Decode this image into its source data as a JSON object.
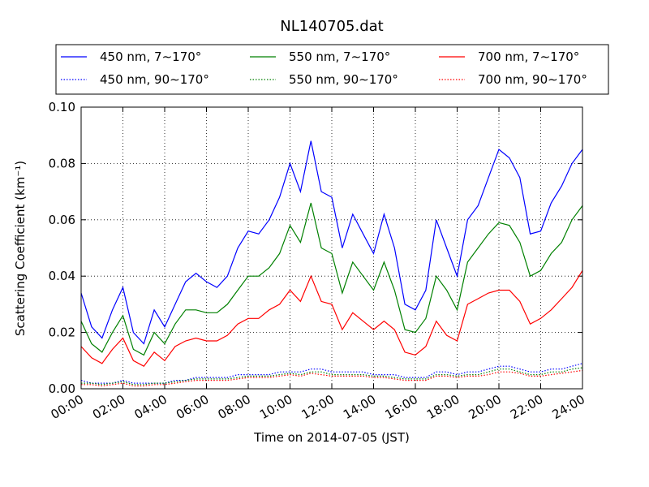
{
  "chart_data": {
    "type": "line",
    "title": "NL140705.dat",
    "xlabel": "Time on 2014-07-05 (JST)",
    "ylabel": "Scattering Coefficient (km⁻¹)",
    "x": [
      0,
      0.5,
      1,
      1.5,
      2,
      2.5,
      3,
      3.5,
      4,
      4.5,
      5,
      5.5,
      6,
      6.5,
      7,
      7.5,
      8,
      8.5,
      9,
      9.5,
      10,
      10.5,
      11,
      11.5,
      12,
      12.5,
      13,
      13.5,
      14,
      14.5,
      15,
      15.5,
      16,
      16.5,
      17,
      17.5,
      18,
      18.5,
      19,
      19.5,
      20,
      20.5,
      21,
      21.5,
      22,
      22.5,
      23,
      23.5,
      24
    ],
    "series": [
      {
        "name": "450 nm, 7∼170°",
        "color": "#0000ff",
        "style": "solid",
        "values": [
          0.034,
          0.022,
          0.018,
          0.028,
          0.036,
          0.02,
          0.016,
          0.028,
          0.022,
          0.03,
          0.038,
          0.041,
          0.038,
          0.036,
          0.04,
          0.05,
          0.056,
          0.055,
          0.06,
          0.068,
          0.08,
          0.07,
          0.088,
          0.07,
          0.068,
          0.05,
          0.062,
          0.055,
          0.048,
          0.062,
          0.05,
          0.03,
          0.028,
          0.035,
          0.06,
          0.05,
          0.04,
          0.06,
          0.065,
          0.075,
          0.085,
          0.082,
          0.075,
          0.055,
          0.056,
          0.066,
          0.072,
          0.08,
          0.085
        ]
      },
      {
        "name": "550 nm, 7∼170°",
        "color": "#008000",
        "style": "solid",
        "values": [
          0.024,
          0.016,
          0.013,
          0.02,
          0.026,
          0.014,
          0.012,
          0.02,
          0.016,
          0.023,
          0.028,
          0.028,
          0.027,
          0.027,
          0.03,
          0.035,
          0.04,
          0.04,
          0.043,
          0.048,
          0.058,
          0.052,
          0.066,
          0.05,
          0.048,
          0.034,
          0.045,
          0.04,
          0.035,
          0.045,
          0.035,
          0.021,
          0.02,
          0.025,
          0.04,
          0.035,
          0.028,
          0.045,
          0.05,
          0.055,
          0.059,
          0.058,
          0.052,
          0.04,
          0.042,
          0.048,
          0.052,
          0.06,
          0.065
        ]
      },
      {
        "name": "700 nm, 7∼170°",
        "color": "#ff0000",
        "style": "solid",
        "values": [
          0.015,
          0.011,
          0.009,
          0.014,
          0.018,
          0.01,
          0.008,
          0.013,
          0.01,
          0.015,
          0.017,
          0.018,
          0.017,
          0.017,
          0.019,
          0.023,
          0.025,
          0.025,
          0.028,
          0.03,
          0.035,
          0.031,
          0.04,
          0.031,
          0.03,
          0.021,
          0.027,
          0.024,
          0.021,
          0.024,
          0.021,
          0.013,
          0.012,
          0.015,
          0.024,
          0.019,
          0.017,
          0.03,
          0.032,
          0.034,
          0.035,
          0.035,
          0.031,
          0.023,
          0.025,
          0.028,
          0.032,
          0.036,
          0.042
        ]
      },
      {
        "name": "450 nm, 90∼170°",
        "color": "#0000ff",
        "style": "dotted",
        "values": [
          0.003,
          0.002,
          0.002,
          0.002,
          0.003,
          0.002,
          0.002,
          0.002,
          0.002,
          0.003,
          0.003,
          0.004,
          0.004,
          0.004,
          0.004,
          0.005,
          0.005,
          0.005,
          0.005,
          0.006,
          0.006,
          0.006,
          0.007,
          0.007,
          0.006,
          0.006,
          0.006,
          0.006,
          0.005,
          0.005,
          0.005,
          0.004,
          0.004,
          0.004,
          0.006,
          0.006,
          0.005,
          0.006,
          0.006,
          0.007,
          0.008,
          0.008,
          0.007,
          0.006,
          0.006,
          0.007,
          0.007,
          0.008,
          0.009
        ]
      },
      {
        "name": "550 nm, 90∼170°",
        "color": "#008000",
        "style": "dotted",
        "values": [
          0.002,
          0.002,
          0.0015,
          0.002,
          0.0025,
          0.0015,
          0.0015,
          0.002,
          0.002,
          0.0025,
          0.003,
          0.0035,
          0.0035,
          0.0035,
          0.0035,
          0.004,
          0.0045,
          0.0045,
          0.0045,
          0.005,
          0.0055,
          0.005,
          0.006,
          0.006,
          0.005,
          0.005,
          0.005,
          0.005,
          0.0045,
          0.0045,
          0.004,
          0.0035,
          0.0035,
          0.0035,
          0.005,
          0.005,
          0.0045,
          0.005,
          0.005,
          0.006,
          0.007,
          0.007,
          0.006,
          0.005,
          0.005,
          0.006,
          0.006,
          0.007,
          0.0075
        ]
      },
      {
        "name": "700 nm, 90∼170°",
        "color": "#ff0000",
        "style": "dotted",
        "values": [
          0.0015,
          0.0015,
          0.001,
          0.0015,
          0.002,
          0.001,
          0.001,
          0.0015,
          0.0015,
          0.002,
          0.0025,
          0.003,
          0.003,
          0.003,
          0.003,
          0.0035,
          0.004,
          0.004,
          0.004,
          0.0045,
          0.005,
          0.0045,
          0.0055,
          0.005,
          0.0045,
          0.0045,
          0.0045,
          0.0045,
          0.004,
          0.004,
          0.0035,
          0.003,
          0.003,
          0.003,
          0.0045,
          0.0045,
          0.004,
          0.0045,
          0.0045,
          0.005,
          0.006,
          0.006,
          0.0055,
          0.0045,
          0.0045,
          0.005,
          0.0055,
          0.006,
          0.0065
        ]
      }
    ],
    "xlim": [
      0,
      24
    ],
    "xticks": [
      {
        "value": 0,
        "label": "00:00"
      },
      {
        "value": 2,
        "label": "02:00"
      },
      {
        "value": 4,
        "label": "04:00"
      },
      {
        "value": 6,
        "label": "06:00"
      },
      {
        "value": 8,
        "label": "08:00"
      },
      {
        "value": 10,
        "label": "10:00"
      },
      {
        "value": 12,
        "label": "12:00"
      },
      {
        "value": 14,
        "label": "14:00"
      },
      {
        "value": 16,
        "label": "16:00"
      },
      {
        "value": 18,
        "label": "18:00"
      },
      {
        "value": 20,
        "label": "20:00"
      },
      {
        "value": 22,
        "label": "22:00"
      },
      {
        "value": 24,
        "label": "24:00"
      }
    ],
    "ylim": [
      0,
      0.1
    ],
    "yticks": [
      {
        "value": 0,
        "label": "0.00"
      },
      {
        "value": 0.02,
        "label": "0.02"
      },
      {
        "value": 0.04,
        "label": "0.04"
      },
      {
        "value": 0.06,
        "label": "0.06"
      },
      {
        "value": 0.08,
        "label": "0.08"
      },
      {
        "value": 0.1,
        "label": "0.10"
      }
    ],
    "grid": true,
    "legend": "top"
  }
}
